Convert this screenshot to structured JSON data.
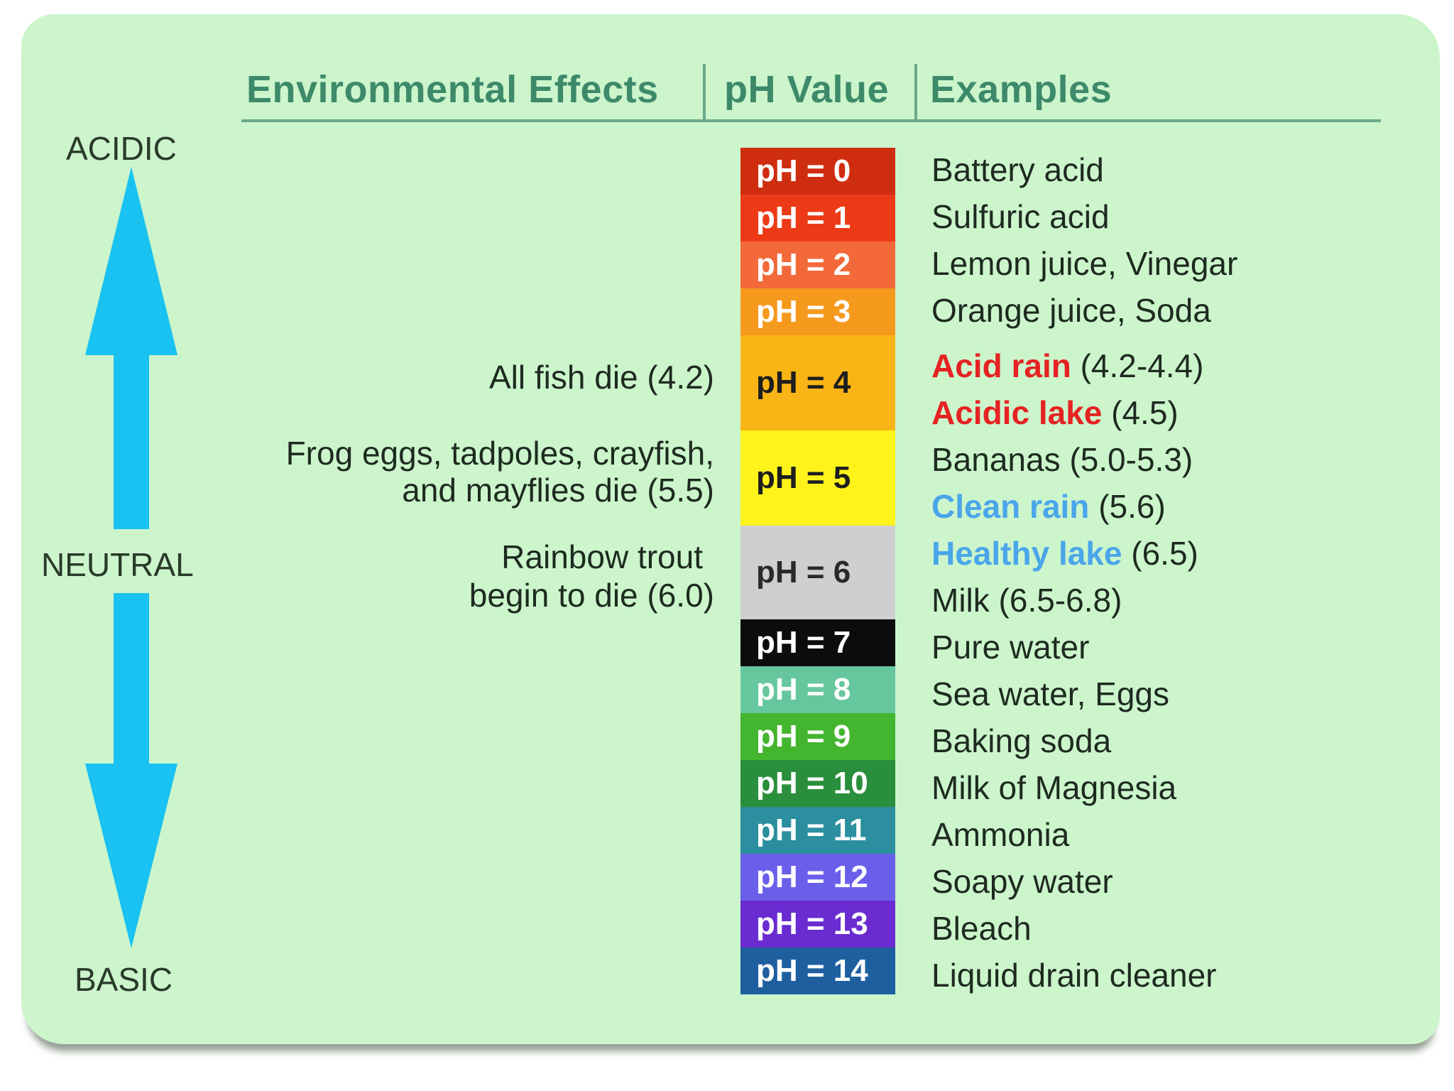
{
  "headers": {
    "effects": "Environmental Effects",
    "ph_value": "pH Value",
    "examples": "Examples"
  },
  "axis": {
    "top": "ACIDIC",
    "middle": "NEUTRAL",
    "bottom": "BASIC",
    "arrow_color": "#19c2f0"
  },
  "scale": [
    {
      "label": "pH = 0",
      "color": "#cf2d10",
      "text": "#ffffff"
    },
    {
      "label": "pH = 1",
      "color": "#ec3a17",
      "text": "#ffffff"
    },
    {
      "label": "pH = 2",
      "color": "#f3693a",
      "text": "#ffffff"
    },
    {
      "label": "pH = 3",
      "color": "#f69a1d",
      "text": "#ffffff"
    },
    {
      "label": "pH = 4",
      "color": "#f9b515",
      "text": "#1e1e1e"
    },
    {
      "label": "pH = 5",
      "color": "#fff31c",
      "text": "#1e1e1e"
    },
    {
      "label": "pH = 6",
      "color": "#cfcfcf",
      "text": "#2a2a2a"
    },
    {
      "label": "pH = 7",
      "color": "#0c0c0c",
      "text": "#ffffff"
    },
    {
      "label": "pH = 8",
      "color": "#66c79e",
      "text": "#ffffff"
    },
    {
      "label": "pH = 9",
      "color": "#44b52f",
      "text": "#ffffff"
    },
    {
      "label": "pH = 10",
      "color": "#2a8f3c",
      "text": "#ffffff"
    },
    {
      "label": "pH = 11",
      "color": "#2b8f9f",
      "text": "#ffffff"
    },
    {
      "label": "pH = 12",
      "color": "#6a5fea",
      "text": "#ffffff"
    },
    {
      "label": "pH = 13",
      "color": "#6a2bd0",
      "text": "#ffffff"
    },
    {
      "label": "pH = 14",
      "color": "#1e5fa0",
      "text": "#ffffff"
    }
  ],
  "examples": [
    {
      "highlight": "",
      "text": "Battery acid"
    },
    {
      "highlight": "",
      "text": "Sulfuric acid"
    },
    {
      "highlight": "",
      "text": "Lemon juice, Vinegar"
    },
    {
      "highlight": "",
      "text": "Orange juice, Soda"
    },
    {
      "highlight": "Acid rain",
      "text": " (4.2-4.4)",
      "color": "#e62222"
    },
    {
      "highlight": "Acidic lake",
      "text": " (4.5)",
      "color": "#e62222"
    },
    {
      "highlight": "",
      "text": "Bananas (5.0-5.3)"
    },
    {
      "highlight": "Clean rain",
      "text": " (5.6)",
      "color": "#4aa6ea"
    },
    {
      "highlight": "Healthy lake",
      "text": " (6.5)",
      "color": "#4aa6ea"
    },
    {
      "highlight": "",
      "text": "Milk (6.5-6.8)"
    },
    {
      "highlight": "",
      "text": "Pure water"
    },
    {
      "highlight": "",
      "text": "Sea water, Eggs"
    },
    {
      "highlight": "",
      "text": "Baking soda"
    },
    {
      "highlight": "",
      "text": "Milk of Magnesia"
    },
    {
      "highlight": "",
      "text": "Ammonia"
    },
    {
      "highlight": "",
      "text": "Soapy water"
    },
    {
      "highlight": "",
      "text": "Bleach"
    },
    {
      "highlight": "",
      "text": "Liquid drain cleaner"
    }
  ],
  "effects": {
    "fish": "All fish die (4.2)",
    "frog_line1": "Frog eggs, tadpoles, crayfish,",
    "frog_line2": "and mayflies die (5.5)",
    "trout_line1": "Rainbow trout",
    "trout_line2": "begin to die (6.0)"
  }
}
